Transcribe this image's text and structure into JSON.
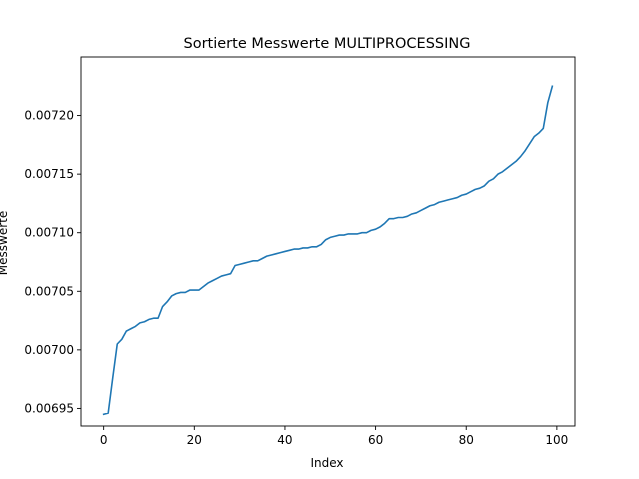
{
  "chart_data": {
    "type": "line",
    "title": "Sortierte Messwerte MULTIPROCESSING",
    "xlabel": "Index",
    "ylabel": "Messwerte",
    "xlim": [
      -5,
      104
    ],
    "ylim": [
      0.006935,
      0.00725
    ],
    "xticks": [
      0,
      20,
      40,
      60,
      80,
      100
    ],
    "xtick_labels": [
      "0",
      "20",
      "40",
      "60",
      "80",
      "100"
    ],
    "yticks": [
      0.00695,
      0.007,
      0.00705,
      0.0071,
      0.00715,
      0.0072
    ],
    "ytick_labels": [
      "0.00695",
      "0.00700",
      "0.00705",
      "0.00710",
      "0.00715",
      "0.00720"
    ],
    "grid": false,
    "series": [
      {
        "color": "#1f77b4",
        "x": [
          0,
          1,
          2,
          3,
          4,
          5,
          6,
          7,
          8,
          9,
          10,
          11,
          12,
          13,
          14,
          15,
          16,
          17,
          18,
          19,
          20,
          21,
          22,
          23,
          24,
          25,
          26,
          27,
          28,
          29,
          30,
          31,
          32,
          33,
          34,
          35,
          36,
          37,
          38,
          39,
          40,
          41,
          42,
          43,
          44,
          45,
          46,
          47,
          48,
          49,
          50,
          51,
          52,
          53,
          54,
          55,
          56,
          57,
          58,
          59,
          60,
          61,
          62,
          63,
          64,
          65,
          66,
          67,
          68,
          69,
          70,
          71,
          72,
          73,
          74,
          75,
          76,
          77,
          78,
          79,
          80,
          81,
          82,
          83,
          84,
          85,
          86,
          87,
          88,
          89,
          90,
          91,
          92,
          93,
          94,
          95,
          96,
          97,
          98,
          99
        ],
        "values": [
          0.006945,
          0.006946,
          0.006976,
          0.007005,
          0.007009,
          0.007016,
          0.007018,
          0.00702,
          0.007023,
          0.007024,
          0.007026,
          0.007027,
          0.007027,
          0.007037,
          0.007041,
          0.007046,
          0.007048,
          0.007049,
          0.007049,
          0.007051,
          0.007051,
          0.007051,
          0.007054,
          0.007057,
          0.007059,
          0.007061,
          0.007063,
          0.007064,
          0.007065,
          0.007072,
          0.007073,
          0.007074,
          0.007075,
          0.007076,
          0.007076,
          0.007078,
          0.00708,
          0.007081,
          0.007082,
          0.007083,
          0.007084,
          0.007085,
          0.007086,
          0.007086,
          0.007087,
          0.007087,
          0.007088,
          0.007088,
          0.00709,
          0.007094,
          0.007096,
          0.007097,
          0.007098,
          0.007098,
          0.007099,
          0.007099,
          0.007099,
          0.0071,
          0.0071,
          0.007102,
          0.007103,
          0.007105,
          0.007108,
          0.007112,
          0.007112,
          0.007113,
          0.007113,
          0.007114,
          0.007116,
          0.007117,
          0.007119,
          0.007121,
          0.007123,
          0.007124,
          0.007126,
          0.007127,
          0.007128,
          0.007129,
          0.00713,
          0.007132,
          0.007133,
          0.007135,
          0.007137,
          0.007138,
          0.00714,
          0.007144,
          0.007146,
          0.00715,
          0.007152,
          0.007155,
          0.007158,
          0.007161,
          0.007165,
          0.00717,
          0.007176,
          0.007182,
          0.007185,
          0.007189,
          0.007211,
          0.007225
        ]
      }
    ]
  }
}
